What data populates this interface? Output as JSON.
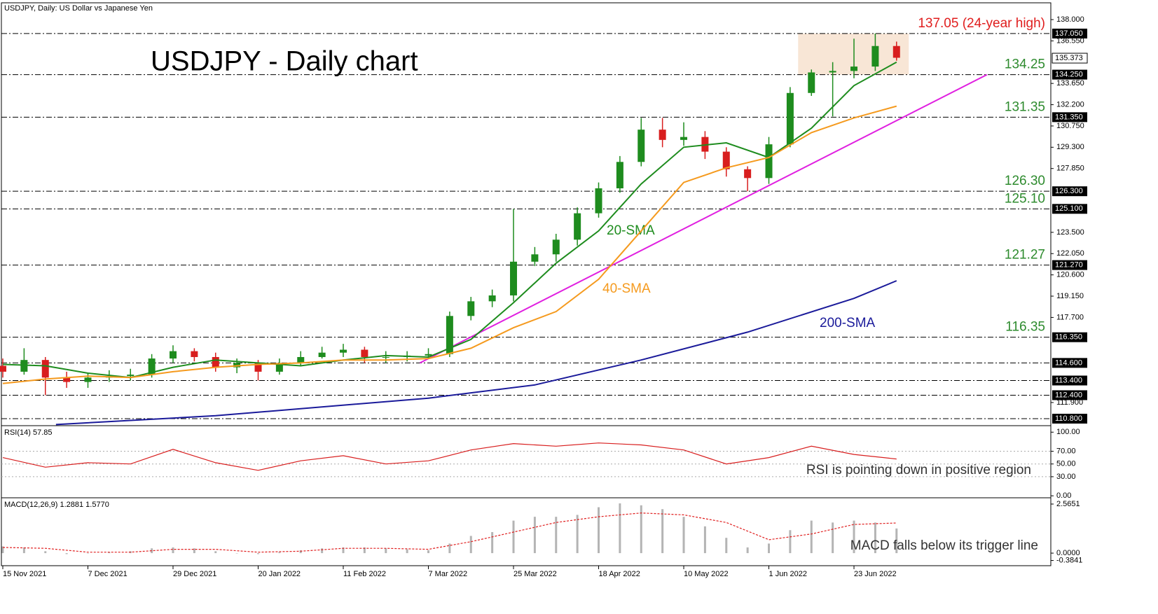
{
  "chart_data": [
    {
      "type": "candlestick",
      "title": "USDJPY, Daily:  US Dollar vs Japanese Yen",
      "heading": "USDJPY - Daily chart",
      "x": [
        0,
        4,
        8,
        12,
        16,
        20,
        24,
        28,
        32,
        36,
        40,
        44,
        48,
        52,
        56,
        60,
        64,
        68,
        72,
        76,
        80,
        84,
        88,
        92,
        96,
        100,
        104,
        108,
        112,
        116,
        120,
        124,
        128,
        132,
        136,
        140,
        144,
        148,
        152,
        156,
        160,
        164,
        168
      ],
      "open": [
        114.4,
        114.0,
        114.8,
        113.6,
        113.3,
        113.6,
        113.7,
        113.8,
        114.9,
        115.4,
        115.0,
        114.3,
        114.6,
        114.0,
        114.6,
        115.0,
        115.3,
        115.5,
        115.0,
        115.0,
        115.1,
        115.2,
        117.8,
        118.8,
        119.2,
        121.5,
        122.0,
        123.0,
        124.8,
        126.5,
        128.3,
        130.5,
        129.8,
        130.0,
        129.0,
        127.8,
        127.2,
        129.5,
        133.0,
        134.4,
        134.5,
        134.8,
        136.2
      ],
      "high": [
        114.9,
        115.6,
        115.0,
        114.0,
        113.9,
        114.1,
        114.2,
        115.2,
        115.8,
        115.6,
        115.3,
        114.9,
        114.8,
        114.9,
        115.4,
        115.7,
        115.9,
        115.7,
        115.4,
        115.4,
        115.6,
        118.1,
        119.1,
        119.6,
        125.1,
        122.5,
        123.4,
        125.2,
        126.9,
        128.7,
        131.3,
        131.3,
        131.0,
        130.4,
        129.3,
        128.0,
        130.0,
        133.4,
        134.6,
        135.1,
        136.7,
        137.05,
        136.5
      ],
      "low": [
        113.6,
        113.8,
        112.4,
        112.9,
        112.9,
        113.3,
        113.4,
        113.6,
        114.6,
        114.7,
        114.0,
        113.9,
        113.4,
        113.8,
        114.4,
        114.9,
        115.0,
        114.6,
        114.6,
        114.7,
        114.9,
        115.0,
        117.5,
        118.4,
        118.8,
        121.2,
        121.5,
        122.6,
        124.5,
        126.2,
        128.0,
        129.3,
        129.4,
        128.5,
        127.3,
        126.3,
        126.8,
        129.3,
        132.8,
        131.4,
        134.0,
        134.5,
        135.2
      ],
      "close": [
        114.0,
        114.8,
        113.6,
        113.3,
        113.6,
        113.7,
        113.8,
        114.9,
        115.4,
        115.0,
        114.3,
        114.6,
        114.0,
        114.6,
        115.0,
        115.3,
        115.5,
        115.0,
        115.0,
        115.1,
        115.2,
        117.8,
        118.8,
        119.2,
        121.5,
        122.0,
        123.0,
        124.8,
        126.5,
        128.3,
        130.5,
        129.8,
        130.0,
        129.0,
        127.8,
        127.2,
        129.5,
        133.0,
        134.4,
        134.5,
        134.8,
        136.2,
        135.4
      ],
      "up_color": "#1e8c1e",
      "down_color": "#d81e1e",
      "xlim": [
        0,
        197
      ],
      "xticks": [
        {
          "value": 0,
          "label": "15 Nov 2021"
        },
        {
          "value": 16,
          "label": "7 Dec 2021"
        },
        {
          "value": 32,
          "label": "29 Dec 2021"
        },
        {
          "value": 48,
          "label": "20 Jan 2022"
        },
        {
          "value": 64,
          "label": "11 Feb 2022"
        },
        {
          "value": 80,
          "label": "7 Mar 2022"
        },
        {
          "value": 96,
          "label": "25 Mar 2022"
        },
        {
          "value": 112,
          "label": "18 Apr 2022"
        },
        {
          "value": 128,
          "label": "10 May 2022"
        },
        {
          "value": 144,
          "label": "1 Jun 2022"
        },
        {
          "value": 160,
          "label": "23 Jun 2022"
        }
      ],
      "ylim": [
        110.37,
        139.05
      ],
      "yticks": [
        {
          "value": 138,
          "label": "138.000"
        },
        {
          "value": 136.55,
          "label": "136.550"
        },
        {
          "value": 133.65,
          "label": "133.650"
        },
        {
          "value": 132.2,
          "label": "132.200"
        },
        {
          "value": 130.75,
          "label": "130.750"
        },
        {
          "value": 129.3,
          "label": "129.300"
        },
        {
          "value": 127.85,
          "label": "127.850"
        },
        {
          "value": 123.5,
          "label": "123.500"
        },
        {
          "value": 122.05,
          "label": "122.050"
        },
        {
          "value": 120.6,
          "label": "120.600"
        },
        {
          "value": 119.15,
          "label": "119.150"
        },
        {
          "value": 117.7,
          "label": "117.700"
        },
        {
          "value": 111.9,
          "label": "111.900"
        }
      ],
      "series": [
        {
          "name": "20-SMA",
          "color": "#1e8c1e",
          "x": [
            0,
            8,
            16,
            24,
            32,
            40,
            48,
            56,
            64,
            72,
            80,
            88,
            96,
            104,
            112,
            120,
            128,
            136,
            144,
            152,
            160,
            168
          ],
          "values": [
            114.5,
            114.4,
            113.9,
            113.6,
            114.3,
            114.8,
            114.6,
            114.4,
            114.8,
            115.1,
            115.0,
            116.2,
            118.7,
            121.4,
            123.6,
            126.8,
            129.3,
            129.6,
            128.6,
            130.6,
            133.5,
            135.1
          ]
        },
        {
          "name": "40-SMA",
          "color": "#f59a1e",
          "x": [
            0,
            8,
            16,
            24,
            32,
            40,
            48,
            56,
            64,
            72,
            80,
            88,
            96,
            104,
            112,
            120,
            128,
            136,
            144,
            152,
            160,
            168
          ],
          "values": [
            113.2,
            113.5,
            113.7,
            113.6,
            114.0,
            114.3,
            114.5,
            114.6,
            114.8,
            114.8,
            114.9,
            115.6,
            117.0,
            118.1,
            120.3,
            123.6,
            126.9,
            127.9,
            128.6,
            130.3,
            131.3,
            132.1
          ]
        },
        {
          "name": "200-SMA",
          "color": "#1a1a9a",
          "x": [
            10,
            40,
            80,
            100,
            120,
            140,
            160,
            168
          ],
          "values": [
            110.4,
            111.0,
            112.2,
            113.1,
            114.8,
            116.7,
            119.0,
            120.2
          ]
        }
      ],
      "trendline": {
        "x": [
          78.4,
          185
        ],
        "values": [
          114.6,
          134.25
        ],
        "color": "#e020e0"
      },
      "range_box": {
        "x": [
          149.5,
          170.3
        ],
        "values": [
          134.25,
          137.05
        ],
        "color": "#f8e6d6"
      },
      "levels": [
        {
          "value": 137.05,
          "label": "137.05 (24-year high)",
          "axis_label": "137.050",
          "color": "#e01e1e"
        },
        {
          "value": 134.25,
          "label": "134.25",
          "axis_label": "134.250",
          "color": "#2e8b2e"
        },
        {
          "value": 131.35,
          "label": "131.35",
          "axis_label": "131.350",
          "color": "#2e8b2e"
        },
        {
          "value": 126.3,
          "label": "126.30",
          "axis_label": "126.300",
          "color": "#2e8b2e"
        },
        {
          "value": 125.1,
          "label": "125.10",
          "axis_label": "125.100",
          "color": "#2e8b2e"
        },
        {
          "value": 121.27,
          "label": "121.27",
          "axis_label": "121.270",
          "color": "#2e8b2e"
        },
        {
          "value": 116.35,
          "label": "116.35",
          "axis_label": "116.350",
          "color": "#2e8b2e"
        },
        {
          "value": 114.6,
          "axis_label": "114.600"
        },
        {
          "value": 113.4,
          "axis_label": "113.400"
        },
        {
          "value": 112.4,
          "axis_label": "112.400"
        },
        {
          "value": 110.8,
          "axis_label": "110.800"
        }
      ],
      "last_price": {
        "value": 135.373,
        "label": "135.373"
      }
    },
    {
      "type": "line",
      "title": "RSI(14) 57.85",
      "annotation": "RSI is pointing down in positive region",
      "color": "#d81e1e",
      "x": [
        0,
        8,
        16,
        24,
        32,
        40,
        48,
        56,
        64,
        72,
        80,
        88,
        96,
        104,
        112,
        120,
        128,
        136,
        144,
        152,
        160,
        168
      ],
      "values": [
        60,
        45,
        52,
        50,
        73,
        52,
        40,
        55,
        63,
        50,
        55,
        72,
        82,
        78,
        83,
        80,
        72,
        50,
        60,
        78,
        65,
        57.85
      ],
      "ylim": [
        -2,
        108
      ],
      "yticks": [
        {
          "value": 100,
          "label": "100.00"
        },
        {
          "value": 70,
          "label": "70.00"
        },
        {
          "value": 50,
          "label": "50.00"
        },
        {
          "value": 30,
          "label": "30.00"
        },
        {
          "value": 0,
          "label": "0.00"
        }
      ],
      "grid": true
    },
    {
      "type": "macd",
      "title": "MACD(12,26,9) 1.2881 1.5770",
      "annotation": "MACD falls below its trigger line",
      "histogram": {
        "color": "#b4b4b4",
        "x": [
          0,
          4,
          8,
          12,
          16,
          20,
          24,
          28,
          32,
          36,
          40,
          44,
          48,
          52,
          56,
          60,
          64,
          68,
          72,
          76,
          80,
          84,
          88,
          92,
          96,
          100,
          104,
          108,
          112,
          116,
          120,
          124,
          128,
          132,
          136,
          140,
          144,
          148,
          152,
          156,
          160,
          164,
          168
        ],
        "values": [
          0.35,
          0.3,
          0.1,
          -0.05,
          0.0,
          0.05,
          0.1,
          0.25,
          0.3,
          0.25,
          0.1,
          0.0,
          -0.05,
          0.05,
          0.15,
          0.25,
          0.3,
          0.3,
          0.25,
          0.2,
          0.15,
          0.5,
          0.9,
          1.1,
          1.7,
          1.9,
          1.9,
          2.0,
          2.4,
          2.6,
          2.5,
          2.3,
          1.9,
          1.4,
          0.8,
          0.3,
          0.5,
          1.2,
          1.7,
          1.6,
          1.7,
          1.6,
          1.2881
        ]
      },
      "signal": {
        "color": "#e01e1e",
        "x": [
          0,
          8,
          16,
          24,
          32,
          40,
          48,
          56,
          64,
          72,
          80,
          88,
          96,
          104,
          112,
          120,
          128,
          136,
          144,
          152,
          160,
          168
        ],
        "values": [
          0.3,
          0.25,
          0.05,
          0.05,
          0.2,
          0.2,
          0.05,
          0.1,
          0.25,
          0.25,
          0.2,
          0.6,
          1.1,
          1.6,
          1.9,
          2.1,
          2.0,
          1.6,
          0.7,
          1.0,
          1.5,
          1.577
        ]
      },
      "ylim": [
        -0.62,
        2.82
      ],
      "yticks": [
        {
          "value": 2.5651,
          "label": "2.5651"
        },
        {
          "value": 0,
          "label": "0.0000"
        },
        {
          "value": -0.3841,
          "label": "-0.3841"
        }
      ]
    }
  ]
}
